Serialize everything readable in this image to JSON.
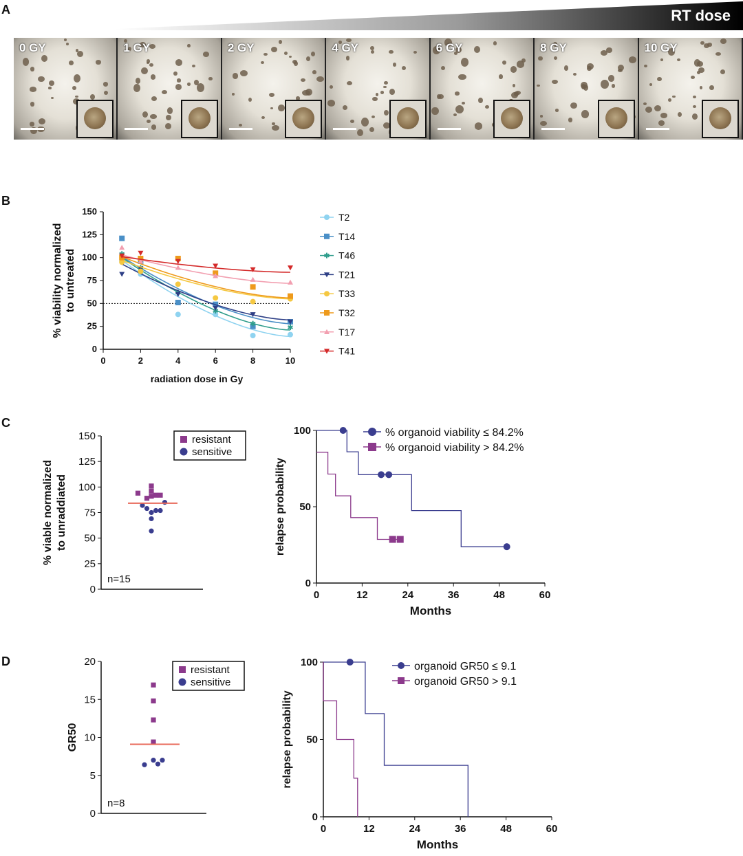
{
  "panels": {
    "a": "A",
    "b": "B",
    "c": "C",
    "d": "D"
  },
  "panel_a": {
    "wedge_label": "RT dose",
    "doses": [
      "0 GY",
      "1 GY",
      "2 GY",
      "4 GY",
      "6 GY",
      "8 GY",
      "10 GY"
    ]
  },
  "chart_data": [
    {
      "id": "B",
      "type": "line",
      "ylabel": "% viability normalized to untreated",
      "ylabel_lines": [
        "% viability normalized",
        "to untreated"
      ],
      "xlabel": "radiation dose in Gy",
      "xlim": [
        0,
        10
      ],
      "ylim": [
        0,
        150
      ],
      "xticks": [
        0,
        2,
        4,
        6,
        8,
        10
      ],
      "yticks": [
        0,
        25,
        50,
        75,
        100,
        125,
        150
      ],
      "reference_line_y": 50,
      "series": [
        {
          "name": "T2",
          "color": "#8fd3f0",
          "marker": "circle",
          "x": [
            1,
            2,
            4,
            6,
            8,
            10
          ],
          "y": [
            96,
            82,
            38,
            38,
            15,
            16
          ],
          "curve": [
            1,
            97,
            14
          ]
        },
        {
          "name": "T14",
          "color": "#4a8fc7",
          "marker": "square",
          "x": [
            1,
            2,
            4,
            6,
            8,
            10
          ],
          "y": [
            121,
            96,
            51,
            49,
            25,
            30
          ],
          "curve": [
            1,
            101,
            28
          ]
        },
        {
          "name": "T46",
          "color": "#2f9d8c",
          "marker": "asterisk",
          "x": [
            1,
            2,
            4,
            6,
            8,
            10
          ],
          "y": [
            104,
            89,
            62,
            42,
            28,
            24
          ],
          "curve": [
            1,
            100,
            21
          ]
        },
        {
          "name": "T21",
          "color": "#2e3f86",
          "marker": "tri-down",
          "x": [
            1,
            2,
            4,
            6,
            8,
            10
          ],
          "y": [
            82,
            88,
            60,
            45,
            38,
            30
          ],
          "curve": [
            1,
            93,
            32
          ]
        },
        {
          "name": "T33",
          "color": "#f5c842",
          "marker": "circle",
          "x": [
            1,
            2,
            4,
            6,
            8,
            10
          ],
          "y": [
            95,
            85,
            71,
            56,
            52,
            55
          ],
          "curve": [
            1,
            97,
            55
          ]
        },
        {
          "name": "T32",
          "color": "#ee9a1c",
          "marker": "square",
          "x": [
            1,
            2,
            4,
            6,
            8,
            10
          ],
          "y": [
            100,
            99,
            99,
            83,
            68,
            58
          ],
          "curve": [
            1,
            101,
            56
          ]
        },
        {
          "name": "T17",
          "color": "#f29fb0",
          "marker": "tri-up",
          "x": [
            1,
            2,
            4,
            6,
            8,
            10
          ],
          "y": [
            111,
            96,
            89,
            80,
            76,
            73
          ],
          "curve": [
            1,
            103,
            72
          ]
        },
        {
          "name": "T41",
          "color": "#d42a2a",
          "marker": "tri-down",
          "x": [
            1,
            2,
            4,
            6,
            8,
            10
          ],
          "y": [
            102,
            105,
            96,
            91,
            87,
            89
          ],
          "curve": [
            1,
            101,
            84
          ]
        }
      ]
    },
    {
      "id": "C-left",
      "type": "scatter",
      "ylabel": "% viable normalized to unraddiated",
      "ylabel_lines": [
        "% viable normalized",
        "to unraddiated"
      ],
      "ylim": [
        0,
        150
      ],
      "yticks": [
        0,
        25,
        50,
        75,
        100,
        125,
        150
      ],
      "legend": [
        "resistant",
        "sensitive"
      ],
      "annotation": "n=15",
      "median": 84.2,
      "series": [
        {
          "name": "resistant",
          "color": "#8c3a8c",
          "marker": "square",
          "x": [
            1,
            4,
            4,
            4,
            5,
            6,
            3
          ],
          "y": [
            94,
            101,
            96,
            91,
            92,
            92,
            89
          ]
        },
        {
          "name": "sensitive",
          "color": "#3a3d8f",
          "marker": "circle",
          "x": [
            2,
            3,
            4,
            4,
            4,
            5,
            6,
            7
          ],
          "y": [
            82,
            79,
            75,
            69,
            57,
            77,
            77,
            85
          ]
        }
      ]
    },
    {
      "id": "C-right",
      "type": "line",
      "ylabel": "relapse probability",
      "xlabel": "Months",
      "xlim": [
        0,
        60
      ],
      "ylim": [
        0,
        100
      ],
      "xticks": [
        0,
        12,
        24,
        36,
        48,
        60
      ],
      "yticks": [
        0,
        50,
        100
      ],
      "series": [
        {
          "name": "% organoid viability ≤ 84.2%",
          "color": "#3a3d8f",
          "marker": "circle",
          "steps": [
            [
              0,
              100
            ],
            [
              8,
              100
            ],
            [
              8,
              86
            ],
            [
              11,
              86
            ],
            [
              11,
              71
            ],
            [
              25,
              71
            ],
            [
              25,
              47.5
            ],
            [
              38,
              47.5
            ],
            [
              38,
              23.8
            ],
            [
              50,
              23.8
            ]
          ],
          "censored": [
            [
              7,
              100
            ],
            [
              17,
              71
            ],
            [
              19,
              71
            ],
            [
              50,
              23.8
            ]
          ]
        },
        {
          "name": "% organoid viability > 84.2%",
          "color": "#8c3a8c",
          "marker": "square",
          "steps": [
            [
              0,
              85.7
            ],
            [
              3,
              85.7
            ],
            [
              3,
              71.4
            ],
            [
              5,
              71.4
            ],
            [
              5,
              57.1
            ],
            [
              9,
              57.1
            ],
            [
              9,
              42.9
            ],
            [
              16,
              42.9
            ],
            [
              16,
              28.6
            ],
            [
              22,
              28.6
            ]
          ],
          "censored": [
            [
              20,
              28.6
            ],
            [
              22,
              28.6
            ]
          ]
        }
      ]
    },
    {
      "id": "D-left",
      "type": "scatter",
      "ylabel": "GR50",
      "ylim": [
        0,
        20
      ],
      "yticks": [
        0,
        5,
        10,
        15,
        20
      ],
      "legend": [
        "resistant",
        "sensitive"
      ],
      "annotation": "n=8",
      "median": 9.1,
      "series": [
        {
          "name": "resistant",
          "color": "#8c3a8c",
          "marker": "square",
          "x": [
            4,
            4,
            4,
            4
          ],
          "y": [
            16.9,
            14.8,
            12.3,
            9.4
          ]
        },
        {
          "name": "sensitive",
          "color": "#3a3d8f",
          "marker": "circle",
          "x": [
            2,
            4,
            5,
            6
          ],
          "y": [
            6.4,
            7.0,
            6.5,
            7.0
          ]
        }
      ]
    },
    {
      "id": "D-right",
      "type": "line",
      "ylabel": "relapse probability",
      "xlabel": "Months",
      "xlim": [
        0,
        60
      ],
      "ylim": [
        0,
        100
      ],
      "xticks": [
        0,
        12,
        24,
        36,
        48,
        60
      ],
      "yticks": [
        0,
        50,
        100
      ],
      "series": [
        {
          "name": "organoid GR50 ≤ 9.1",
          "color": "#3a3d8f",
          "marker": "circle",
          "steps": [
            [
              0,
              100
            ],
            [
              11,
              100
            ],
            [
              11,
              66.7
            ],
            [
              16,
              66.7
            ],
            [
              16,
              33.3
            ],
            [
              38,
              33.3
            ],
            [
              38,
              0
            ]
          ],
          "censored": [
            [
              7,
              100
            ]
          ]
        },
        {
          "name": "organoid GR50 > 9.1",
          "color": "#8c3a8c",
          "marker": "square",
          "steps": [
            [
              0,
              100
            ],
            [
              0,
              75
            ],
            [
              3.5,
              75
            ],
            [
              3.5,
              50
            ],
            [
              8,
              50
            ],
            [
              8,
              25
            ],
            [
              9,
              25
            ],
            [
              9,
              0
            ]
          ],
          "censored": []
        }
      ]
    }
  ]
}
